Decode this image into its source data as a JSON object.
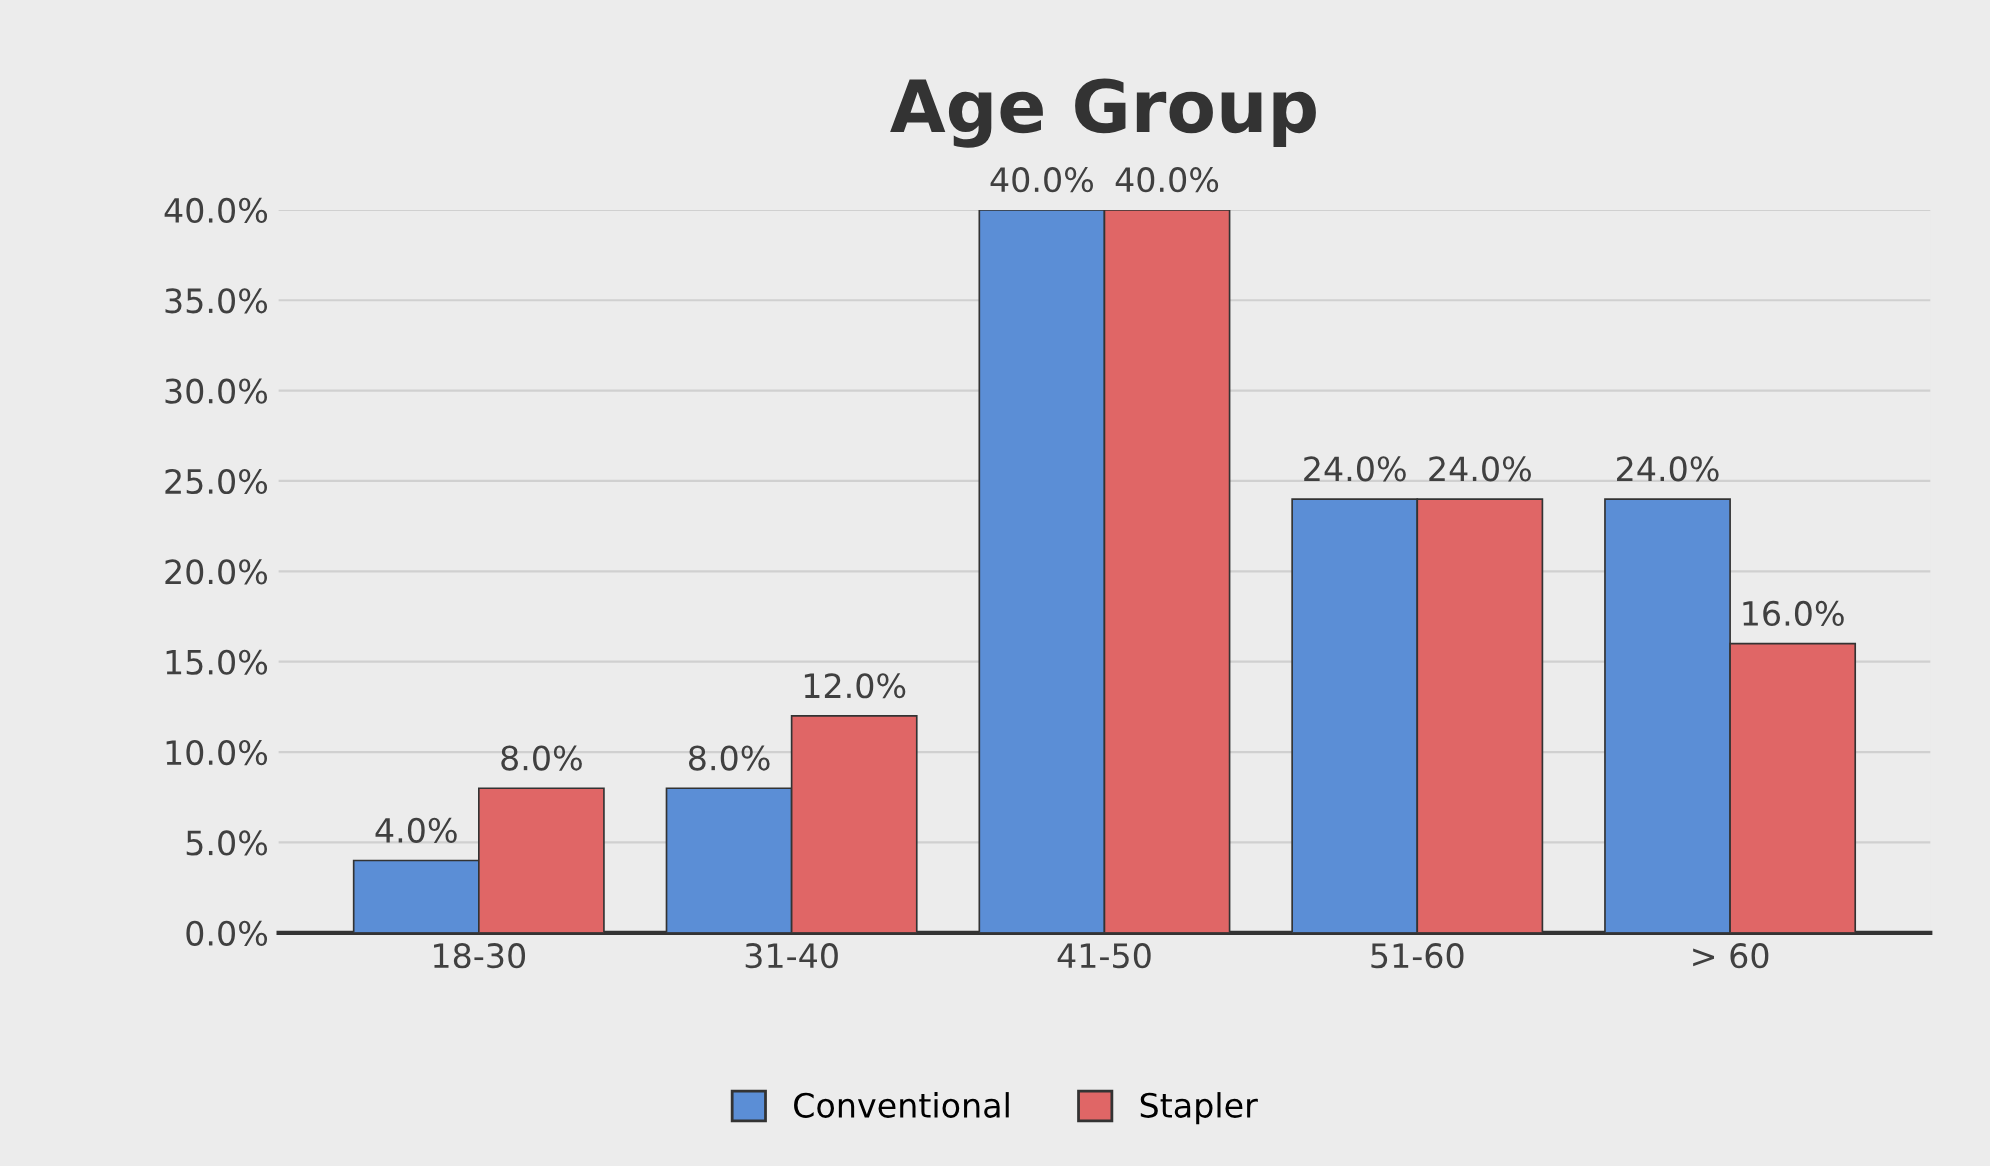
{
  "chart_data": {
    "type": "bar",
    "title": "Age Group",
    "categories": [
      "18-30",
      "31-40",
      "41-50",
      "51-60",
      "> 60"
    ],
    "series": [
      {
        "name": "Conventional",
        "color": "#5b8ed6",
        "values": [
          4,
          8,
          40,
          24,
          24
        ],
        "value_labels": [
          "4.0%",
          "8.0%",
          "40.0%",
          "24.0%",
          "24.0%"
        ]
      },
      {
        "name": "Stapler",
        "color": "#e06666",
        "values": [
          8,
          12,
          40,
          24,
          16
        ],
        "value_labels": [
          "8.0%",
          "12.0%",
          "40.0%",
          "24.0%",
          "16.0%"
        ]
      }
    ],
    "ylim": [
      0,
      40
    ],
    "yticks": [
      {
        "value": 0,
        "label": "0.0%"
      },
      {
        "value": 5,
        "label": "5.0%"
      },
      {
        "value": 10,
        "label": "10.0%"
      },
      {
        "value": 15,
        "label": "15.0%"
      },
      {
        "value": 20,
        "label": "20.0%"
      },
      {
        "value": 25,
        "label": "25.0%"
      },
      {
        "value": 30,
        "label": "30.0%"
      },
      {
        "value": 35,
        "label": "35.0%"
      },
      {
        "value": 40,
        "label": "40.0%"
      }
    ],
    "grid": "y",
    "legend": "bottom"
  }
}
